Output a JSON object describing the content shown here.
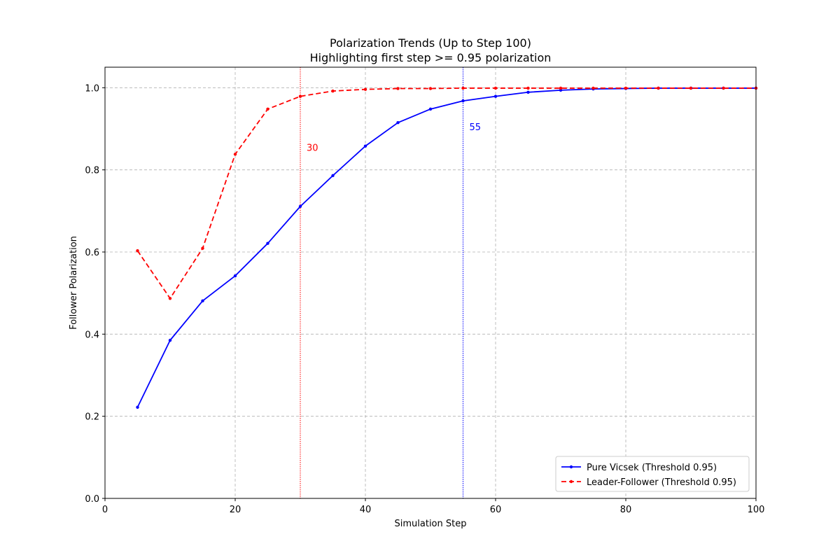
{
  "chart_data": {
    "type": "line",
    "title": "Polarization Trends (Up to Step 100)",
    "subtitle": "Highlighting first step >= 0.95 polarization",
    "xlabel": "Simulation Step",
    "ylabel": "Follower Polarization",
    "xlim": [
      0,
      100
    ],
    "ylim": [
      0,
      1.05
    ],
    "xticks": [
      0,
      20,
      40,
      60,
      80,
      100
    ],
    "yticks": [
      0.0,
      0.2,
      0.4,
      0.6,
      0.8,
      1.0
    ],
    "xtick_labels": [
      "0",
      "20",
      "40",
      "60",
      "80",
      "100"
    ],
    "ytick_labels": [
      "0.0",
      "0.2",
      "0.4",
      "0.6",
      "0.8",
      "1.0"
    ],
    "grid": true,
    "legend_position": "bottom-right",
    "x": [
      5,
      10,
      15,
      20,
      25,
      30,
      35,
      40,
      45,
      50,
      55,
      60,
      65,
      70,
      75,
      80,
      85,
      90,
      95,
      100
    ],
    "series": [
      {
        "name": "Pure Vicsek (Threshold 0.95)",
        "color": "#0000ff",
        "style": "solid",
        "values": [
          0.222,
          0.385,
          0.481,
          0.542,
          0.621,
          0.711,
          0.786,
          0.858,
          0.915,
          0.948,
          0.968,
          0.979,
          0.989,
          0.994,
          0.997,
          0.998,
          0.999,
          0.999,
          0.999,
          0.999
        ]
      },
      {
        "name": "Leader-Follower (Threshold 0.95)",
        "color": "#ff0000",
        "style": "dashed",
        "values": [
          0.603,
          0.487,
          0.609,
          0.838,
          0.948,
          0.979,
          0.992,
          0.996,
          0.998,
          0.998,
          0.999,
          0.999,
          0.999,
          0.999,
          0.999,
          0.999,
          0.999,
          0.999,
          0.999,
          0.999
        ]
      }
    ],
    "threshold_markers": [
      {
        "x": 55,
        "label": "55",
        "color": "#0000ff",
        "label_y": 0.905
      },
      {
        "x": 30,
        "label": "30",
        "color": "#ff0000",
        "label_y": 0.855
      }
    ]
  }
}
